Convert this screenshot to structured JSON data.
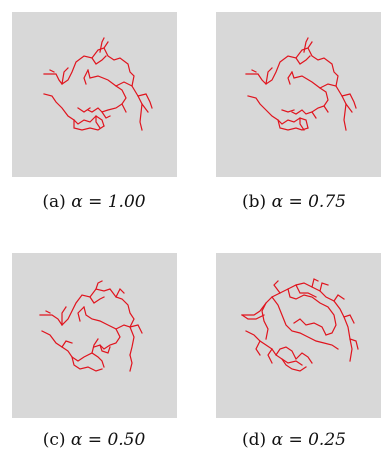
{
  "figure": {
    "panels": [
      {
        "caption_prefix": "(a) ",
        "caption_math": "α = 1.00",
        "alpha": 1.0
      },
      {
        "caption_prefix": "(b) ",
        "caption_math": "α = 0.75",
        "alpha": 0.75
      },
      {
        "caption_prefix": "(c) ",
        "caption_math": "α = 0.50",
        "alpha": 0.5
      },
      {
        "caption_prefix": "(d) ",
        "caption_math": "α = 0.25",
        "alpha": 0.25
      }
    ],
    "line_color": "#e0141e",
    "panel_background": "#d8d8d8"
  }
}
